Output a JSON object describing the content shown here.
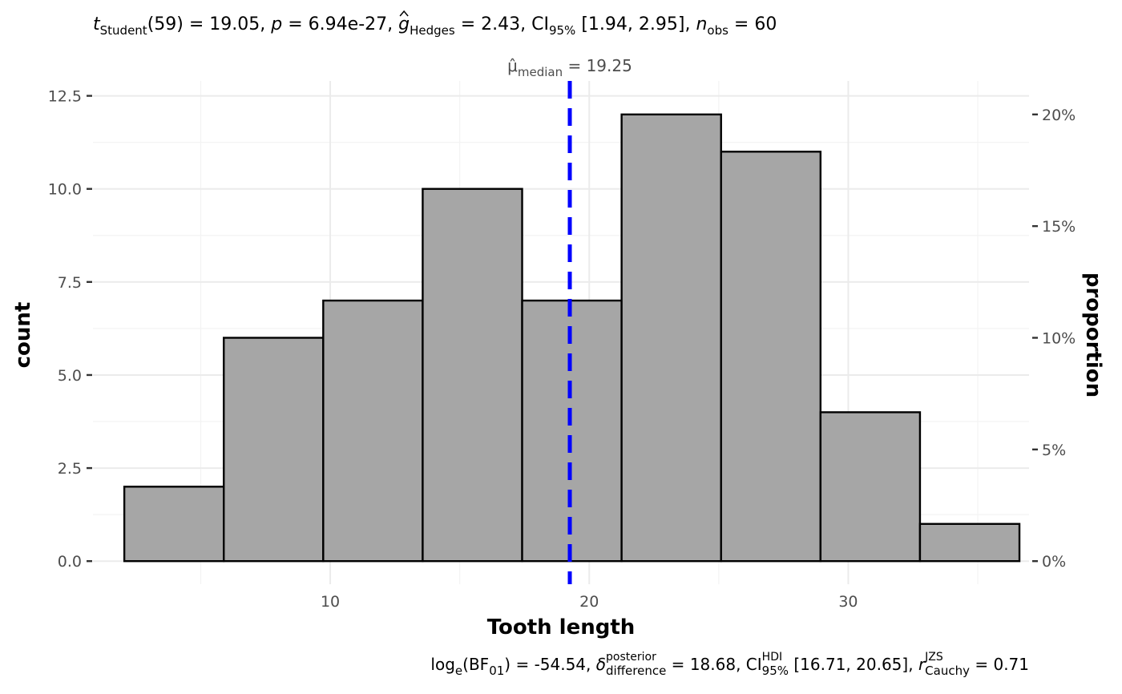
{
  "chart_data": {
    "type": "bar",
    "subtitle": {
      "t_symbol": "t",
      "t_sub": "Student",
      "t_df": "(59)",
      "t_value": "19.05",
      "p_symbol": "p",
      "p_value": "6.94e-27",
      "g_symbol": "g",
      "g_sub": "Hedges",
      "g_value": "2.43",
      "ci_symbol": "CI",
      "ci_sub": "95%",
      "ci_value": "[1.94, 2.95]",
      "n_symbol": "n",
      "n_sub": "obs",
      "n_value": "60"
    },
    "caption": {
      "log_part": "log",
      "log_sub": "e",
      "bf_label": "(BF",
      "bf_sub": "01",
      "bf_value": "-54.54",
      "delta_symbol": "δ",
      "delta_sup": "posterior",
      "delta_sub": "difference",
      "delta_value": "18.68",
      "ci_symbol": "CI",
      "ci_sup": "HDI",
      "ci_sub": "95%",
      "ci_value": "[16.71, 20.65]",
      "r_symbol": "r",
      "r_sup": "JZS",
      "r_sub": "Cauchy",
      "r_value": "0.71"
    },
    "xlabel": "Tooth length",
    "ylabel": "count",
    "ylabel_right": "proportion",
    "xlim": [
      0.84,
      36.98
    ],
    "ylim": [
      -0.62,
      12.9
    ],
    "x_ticks": [
      10,
      20,
      30
    ],
    "x_tick_labels": [
      "10",
      "20",
      "30"
    ],
    "y_ticks": [
      0,
      2.5,
      5,
      7.5,
      10,
      12.5
    ],
    "y_tick_labels": [
      "0.0",
      "2.5",
      "5.0",
      "7.5",
      "10.0",
      "12.5"
    ],
    "y2_ticks": [
      0,
      0.05,
      0.1,
      0.15,
      0.2
    ],
    "y2_tick_labels": [
      "0%",
      "5%",
      "10%",
      "15%",
      "20%"
    ],
    "bins": [
      {
        "x_start": 2.05,
        "x_end": 5.89,
        "count": 2
      },
      {
        "x_start": 5.89,
        "x_end": 9.73,
        "count": 6
      },
      {
        "x_start": 9.73,
        "x_end": 13.57,
        "count": 7
      },
      {
        "x_start": 13.57,
        "x_end": 17.41,
        "count": 10
      },
      {
        "x_start": 17.41,
        "x_end": 21.25,
        "count": 7
      },
      {
        "x_start": 21.25,
        "x_end": 25.09,
        "count": 12
      },
      {
        "x_start": 25.09,
        "x_end": 28.93,
        "count": 11
      },
      {
        "x_start": 28.93,
        "x_end": 32.77,
        "count": 4
      },
      {
        "x_start": 32.77,
        "x_end": 36.61,
        "count": 1
      }
    ],
    "n_total": 60,
    "median": {
      "value": 19.25,
      "symbol": "μ̂",
      "sub": "median",
      "label_value": "19.25",
      "color": "#0000ff"
    },
    "bar_fill": "#a6a6a6",
    "bar_outline": "#000000",
    "grid": true,
    "legend": "none"
  }
}
